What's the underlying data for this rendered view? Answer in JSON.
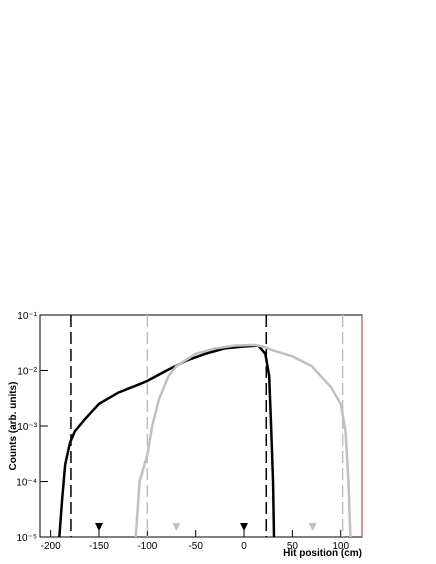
{
  "chart_data": {
    "type": "line",
    "xlabel": "Hit position (cm)",
    "ylabel": "Counts (arb. units)",
    "xlim": [
      -211,
      122
    ],
    "xticks": [
      -200,
      -150,
      -100,
      -50,
      0,
      50,
      100
    ],
    "ylim": [
      1e-05,
      0.1
    ],
    "log_y": true,
    "yticks": [
      {
        "value": 1e-05,
        "label": "10⁻⁵"
      },
      {
        "value": 0.0001,
        "label": "10⁻⁴"
      },
      {
        "value": 0.001,
        "label": "10⁻³"
      },
      {
        "value": 0.01,
        "label": "10⁻²"
      },
      {
        "value": 0.1,
        "label": "10⁻¹"
      }
    ],
    "series": [
      {
        "color": "#000000",
        "x": [
          -191,
          -188,
          -185,
          -180,
          -175,
          -165,
          -150,
          -130,
          -110,
          -100,
          -80,
          -60,
          -40,
          -20,
          0,
          15,
          22,
          26,
          28,
          30,
          31
        ],
        "values": [
          1e-05,
          5e-05,
          0.0002,
          0.0005,
          0.0008,
          0.0013,
          0.0025,
          0.004,
          0.0055,
          0.0065,
          0.01,
          0.015,
          0.02,
          0.025,
          0.027,
          0.028,
          0.02,
          0.008,
          0.001,
          0.0001,
          1e-05
        ]
      },
      {
        "color": "#c0c0c0",
        "x": [
          -112,
          -108,
          -103,
          -100,
          -95,
          -88,
          -78,
          -70,
          -50,
          -30,
          -10,
          10,
          20,
          30,
          50,
          70,
          90,
          100,
          105,
          108,
          110
        ],
        "values": [
          1e-05,
          0.0001,
          0.0002,
          0.0003,
          0.001,
          0.003,
          0.008,
          0.012,
          0.02,
          0.025,
          0.028,
          0.029,
          0.027,
          0.023,
          0.018,
          0.012,
          0.005,
          0.0025,
          0.0008,
          0.0001,
          1e-05
        ]
      }
    ],
    "vlines": [
      {
        "x": -179,
        "color": "#000000"
      },
      {
        "x": 23,
        "color": "#000000"
      },
      {
        "x": -100,
        "color": "#c0c0c0"
      },
      {
        "x": 102,
        "color": "#c0c0c0"
      }
    ],
    "markers": [
      {
        "x": -150,
        "color": "#000000"
      },
      {
        "x": 0,
        "color": "#000000"
      },
      {
        "x": -70,
        "color": "#c0c0c0"
      },
      {
        "x": 71,
        "color": "#c0c0c0"
      }
    ]
  }
}
